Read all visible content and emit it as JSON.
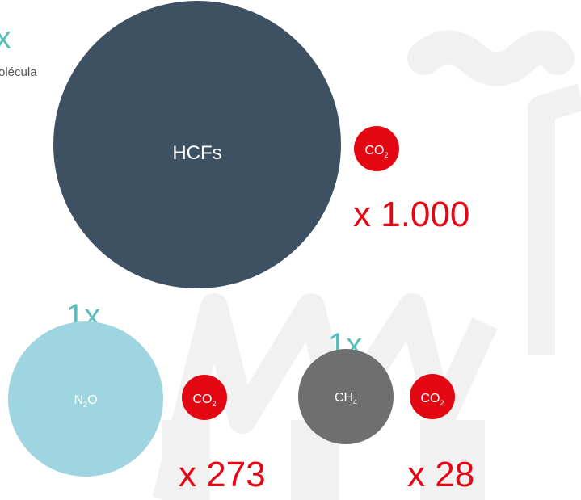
{
  "top_note": {
    "value": "x",
    "caption": "olécula"
  },
  "hcfs": {
    "label": "HCFs",
    "badge": {
      "main": "CO",
      "sub": "2"
    },
    "multiplier": "x 1.000"
  },
  "n2o": {
    "count": "1x",
    "label": {
      "main": "N",
      "sub": "2",
      "rest": "O"
    },
    "badge": {
      "main": "CO",
      "sub": "2"
    },
    "multiplier": "x 273"
  },
  "ch4": {
    "count": "1x",
    "label": {
      "main": "CH",
      "sub": "4"
    },
    "badge": {
      "main": "CO",
      "sub": "2"
    },
    "multiplier": "x 28"
  }
}
